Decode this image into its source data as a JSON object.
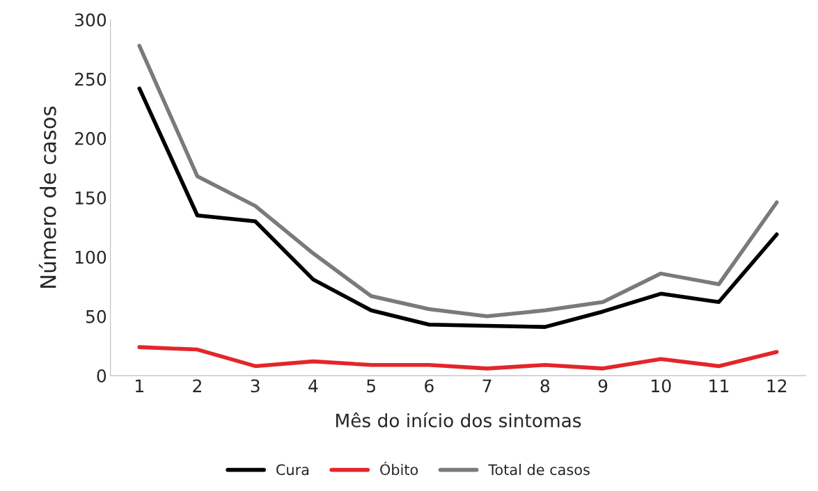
{
  "chart_data": {
    "type": "line",
    "xlabel": "Mês do início dos sintomas",
    "ylabel": "Número de casos",
    "categories": [
      "1",
      "2",
      "3",
      "4",
      "5",
      "6",
      "7",
      "8",
      "9",
      "10",
      "11",
      "12"
    ],
    "series": [
      {
        "name": "Cura",
        "color": "#000000",
        "values": [
          242,
          135,
          130,
          81,
          55,
          43,
          42,
          41,
          54,
          69,
          62,
          119
        ]
      },
      {
        "name": "Óbito",
        "color": "#e3262b",
        "values": [
          24,
          22,
          8,
          12,
          9,
          9,
          6,
          9,
          6,
          14,
          8,
          20
        ]
      },
      {
        "name": "Total de casos",
        "color": "#7a7a7a",
        "values": [
          278,
          168,
          143,
          103,
          67,
          56,
          50,
          55,
          62,
          86,
          77,
          146
        ]
      }
    ],
    "ylim": [
      0,
      300
    ],
    "yticks": [
      0,
      50,
      100,
      150,
      200,
      250,
      300
    ],
    "grid": false,
    "legend": "bottom",
    "marker": "none",
    "line_style": "solid"
  }
}
